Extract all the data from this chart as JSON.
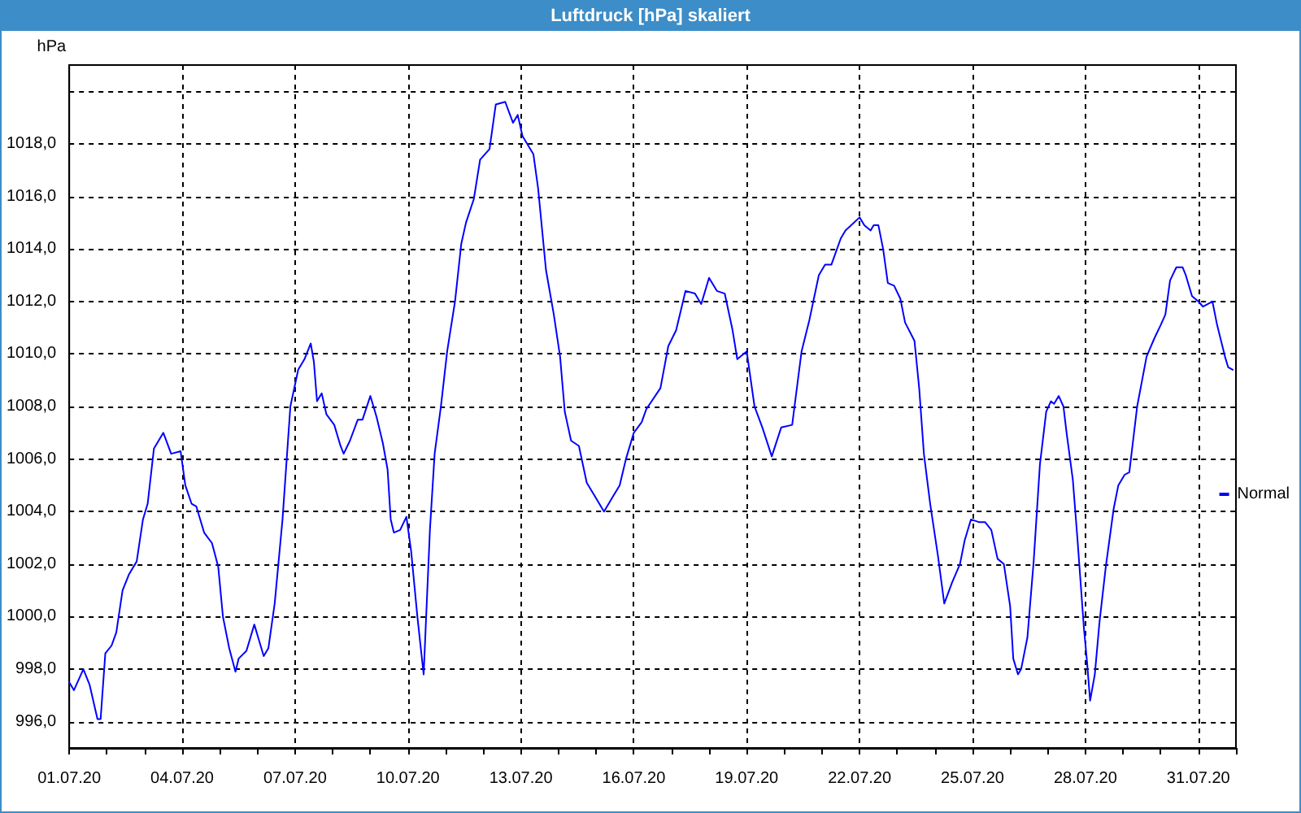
{
  "chart_data": {
    "type": "line",
    "title": "Luftdruck [hPa] skaliert",
    "ylabel": "hPa",
    "x": [
      "--07-01T00:00",
      "--07-01T03:00",
      "--07-01T09:00",
      "--07-01T13:00",
      "--07-01T18:00",
      "--07-01T20:00",
      "--07-01T23:00",
      "--07-02T03:00",
      "--07-02T06:00",
      "--07-02T10:00",
      "--07-02T14:00",
      "--07-02T19:00",
      "--07-02T23:00",
      "--07-03T02:00",
      "--07-03T06:00",
      "--07-03T12:00",
      "--07-03T17:00",
      "--07-03T23:00",
      "--07-04T02:00",
      "--07-04T06:00",
      "--07-04T09:00",
      "--07-04T14:00",
      "--07-04T19:00",
      "--07-04T23:00",
      "--07-05T02:00",
      "--07-05T06:00",
      "--07-05T10:00",
      "--07-05T12:00",
      "--07-05T17:00",
      "--07-05T22:00",
      "--07-06T01:00",
      "--07-06T04:00",
      "--07-06T07:00",
      "--07-06T11:00",
      "--07-06T16:00",
      "--07-06T21:00",
      "--07-07T02:00",
      "--07-07T06:00",
      "--07-07T10:00",
      "--07-07T12:00",
      "--07-07T14:00",
      "--07-07T17:00",
      "--07-07T20:00",
      "--07-08T01:00",
      "--07-08T05:00",
      "--07-08T07:00",
      "--07-08T11:00",
      "--07-08T16:00",
      "--07-08T19:00",
      "--07-09T00:00",
      "--07-09T04:00",
      "--07-09T08:00",
      "--07-09T11:00",
      "--07-09T13:00",
      "--07-09T15:00",
      "--07-09T19:00",
      "--07-09T23:00",
      "--07-10T02:00",
      "--07-10T06:00",
      "--07-10T10:00",
      "--07-10T14:00",
      "--07-10T17:00",
      "--07-10T21:00",
      "--07-11T01:00",
      "--07-11T06:00",
      "--07-11T10:00",
      "--07-11T13:00",
      "--07-11T18:00",
      "--07-11T22:00",
      "--07-12T04:00",
      "--07-12T08:00",
      "--07-12T14:00",
      "--07-12T19:00",
      "--07-12T22:00",
      "--07-13T01:00",
      "--07-13T08:00",
      "--07-13T11:00",
      "--07-13T16:00",
      "--07-13T21:00",
      "--07-14T01:00",
      "--07-14T04:00",
      "--07-14T08:00",
      "--07-14T13:00",
      "--07-14T18:00",
      "--07-15T00:00",
      "--07-15T05:00",
      "--07-15T10:00",
      "--07-15T15:00",
      "--07-15T19:00",
      "--07-16T00:00",
      "--07-16T05:00",
      "--07-16T08:00",
      "--07-16T17:00",
      "--07-16T22:00",
      "--07-17T03:00",
      "--07-17T09:00",
      "--07-17T15:00",
      "--07-17T19:00",
      "--07-18T00:00",
      "--07-18T05:00",
      "--07-18T10:00",
      "--07-18T15:00",
      "--07-18T18:00",
      "--07-19T00:00",
      "--07-19T05:00",
      "--07-19T10:00",
      "--07-19T16:00",
      "--07-19T22:00",
      "--07-20T05:00",
      "--07-20T11:00",
      "--07-20T16:00",
      "--07-20T22:00",
      "--07-21T02:00",
      "--07-21T06:00",
      "--07-21T12:00",
      "--07-21T15:00",
      "--07-22T00:00",
      "--07-22T03:00",
      "--07-22T07:00",
      "--07-22T09:00",
      "--07-22T12:00",
      "--07-22T15:00",
      "--07-22T18:00",
      "--07-22T22:00",
      "--07-23T02:00",
      "--07-23T05:00",
      "--07-23T11:00",
      "--07-23T14:00",
      "--07-23T17:00",
      "--07-23T21:00",
      "--07-24T02:00",
      "--07-24T06:00",
      "--07-24T11:00",
      "--07-24T16:00",
      "--07-24T19:00",
      "--07-24T23:00",
      "--07-25T04:00",
      "--07-25T08:00",
      "--07-25T12:00",
      "--07-25T16:00",
      "--07-25T20:00",
      "--07-26T00:00",
      "--07-26T02:00",
      "--07-26T05:00",
      "--07-26T07:00",
      "--07-26T11:00",
      "--07-26T15:00",
      "--07-26T19:00",
      "--07-26T23:00",
      "--07-27T02:00",
      "--07-27T04:00",
      "--07-27T07:00",
      "--07-27T10:00",
      "--07-27T12:00",
      "--07-27T16:00",
      "--07-27T19:00",
      "--07-27T23:00",
      "--07-28T01:00",
      "--07-28T03:00",
      "--07-28T06:00",
      "--07-28T09:00",
      "--07-28T13:00",
      "--07-28T18:00",
      "--07-28T21:00",
      "--07-29T01:00",
      "--07-29T04:00",
      "--07-29T09:00",
      "--07-29T15:00",
      "--07-29T20:00",
      "--07-30T00:00",
      "--07-30T03:00",
      "--07-30T06:00",
      "--07-30T10:00",
      "--07-30T14:00",
      "--07-30T16:00",
      "--07-30T20:00",
      "--07-31T00:00",
      "--07-31T03:00",
      "--07-31T09:00",
      "--07-31T12:00",
      "--07-31T17:00",
      "--07-31T19:00",
      "--07-31T22:00"
    ],
    "series": [
      {
        "name": "Normal",
        "color": "#0000ff",
        "values": [
          997.5,
          997.2,
          998.0,
          997.4,
          996.1,
          996.1,
          998.6,
          998.9,
          999.4,
          1001.0,
          1001.6,
          1002.1,
          1003.7,
          1004.3,
          1006.4,
          1007.0,
          1006.2,
          1006.3,
          1005.0,
          1004.3,
          1004.2,
          1003.2,
          1002.8,
          1001.9,
          1000.0,
          998.8,
          997.9,
          998.4,
          998.7,
          999.7,
          999.1,
          998.5,
          998.8,
          1000.5,
          1003.7,
          1008.0,
          1009.4,
          1009.8,
          1010.4,
          1009.7,
          1008.2,
          1008.5,
          1007.7,
          1007.3,
          1006.5,
          1006.2,
          1006.7,
          1007.5,
          1007.5,
          1008.4,
          1007.6,
          1006.6,
          1005.6,
          1003.7,
          1003.2,
          1003.3,
          1003.8,
          1002.5,
          1000.0,
          997.8,
          1003.3,
          1006.2,
          1008.0,
          1010.1,
          1012.0,
          1014.2,
          1015.0,
          1015.9,
          1017.4,
          1017.8,
          1019.5,
          1019.6,
          1018.8,
          1019.1,
          1018.3,
          1017.6,
          1016.3,
          1013.2,
          1011.5,
          1009.9,
          1007.8,
          1006.7,
          1006.5,
          1005.1,
          1004.5,
          1004.0,
          1004.5,
          1005.0,
          1006.0,
          1007.0,
          1007.4,
          1007.9,
          1008.7,
          1010.3,
          1010.9,
          1012.4,
          1012.3,
          1011.9,
          1012.9,
          1012.4,
          1012.3,
          1010.9,
          1009.8,
          1010.1,
          1008.0,
          1007.2,
          1006.1,
          1007.2,
          1007.3,
          1010.1,
          1011.3,
          1013.0,
          1013.4,
          1013.4,
          1014.4,
          1014.7,
          1015.2,
          1014.9,
          1014.7,
          1014.9,
          1014.9,
          1014.0,
          1012.7,
          1012.6,
          1012.1,
          1011.2,
          1010.5,
          1008.7,
          1006.2,
          1004.3,
          1002.3,
          1000.5,
          1001.3,
          1002.0,
          1002.9,
          1003.7,
          1003.6,
          1003.6,
          1003.3,
          1002.2,
          1002.0,
          1000.4,
          998.4,
          997.8,
          998.0,
          999.2,
          1002.1,
          1005.8,
          1007.8,
          1008.2,
          1008.1,
          1008.4,
          1008.0,
          1007.0,
          1005.2,
          1002.9,
          999.6,
          998.3,
          996.8,
          997.8,
          999.8,
          1001.9,
          1004.1,
          1005.0,
          1005.4,
          1005.5,
          1008.0,
          1009.9,
          1010.6,
          1011.1,
          1011.5,
          1012.8,
          1013.3,
          1013.3,
          1013.0,
          1012.2,
          1012.0,
          1011.8,
          1012.0,
          1011.1,
          1009.9,
          1009.5,
          1009.4
        ]
      }
    ],
    "xlim": [
      "--07-01",
      "--08-01"
    ],
    "xticks": [
      {
        "value": "--07-01",
        "label": "01.07.20"
      },
      {
        "value": "--07-02",
        "label": null
      },
      {
        "value": "--07-03",
        "label": null
      },
      {
        "value": "--07-04",
        "label": "04.07.20"
      },
      {
        "value": "--07-05",
        "label": null
      },
      {
        "value": "--07-06",
        "label": null
      },
      {
        "value": "--07-07",
        "label": "07.07.20"
      },
      {
        "value": "--07-08",
        "label": null
      },
      {
        "value": "--07-09",
        "label": null
      },
      {
        "value": "--07-10",
        "label": "10.07.20"
      },
      {
        "value": "--07-11",
        "label": null
      },
      {
        "value": "--07-12",
        "label": null
      },
      {
        "value": "--07-13",
        "label": "13.07.20"
      },
      {
        "value": "--07-14",
        "label": null
      },
      {
        "value": "--07-15",
        "label": null
      },
      {
        "value": "--07-16",
        "label": "16.07.20"
      },
      {
        "value": "--07-17",
        "label": null
      },
      {
        "value": "--07-18",
        "label": null
      },
      {
        "value": "--07-19",
        "label": "19.07.20"
      },
      {
        "value": "--07-20",
        "label": null
      },
      {
        "value": "--07-21",
        "label": null
      },
      {
        "value": "--07-22",
        "label": "22.07.20"
      },
      {
        "value": "--07-23",
        "label": null
      },
      {
        "value": "--07-24",
        "label": null
      },
      {
        "value": "--07-25",
        "label": "25.07.20"
      },
      {
        "value": "--07-26",
        "label": null
      },
      {
        "value": "--07-27",
        "label": null
      },
      {
        "value": "--07-28",
        "label": "28.07.20"
      },
      {
        "value": "--07-29",
        "label": null
      },
      {
        "value": "--07-30",
        "label": null
      },
      {
        "value": "--07-31",
        "label": "31.07.20"
      },
      {
        "value": "--08-01",
        "label": null
      }
    ],
    "ylim": [
      995,
      1021
    ],
    "yticks": [
      {
        "value": 996,
        "label": "996,0"
      },
      {
        "value": 998,
        "label": "998,0"
      },
      {
        "value": 1000,
        "label": "1000,0"
      },
      {
        "value": 1002,
        "label": "1002,0"
      },
      {
        "value": 1004,
        "label": "1004,0"
      },
      {
        "value": 1006,
        "label": "1006,0"
      },
      {
        "value": 1008,
        "label": "1008,0"
      },
      {
        "value": 1010,
        "label": "1010,0"
      },
      {
        "value": 1012,
        "label": "1012,0"
      },
      {
        "value": 1014,
        "label": "1014,0"
      },
      {
        "value": 1016,
        "label": "1016,0"
      },
      {
        "value": 1018,
        "label": "1018,0"
      },
      {
        "value": 1020,
        "label": null
      }
    ],
    "grid": true,
    "legend": "right",
    "marker": "none",
    "line_style": "solid"
  }
}
